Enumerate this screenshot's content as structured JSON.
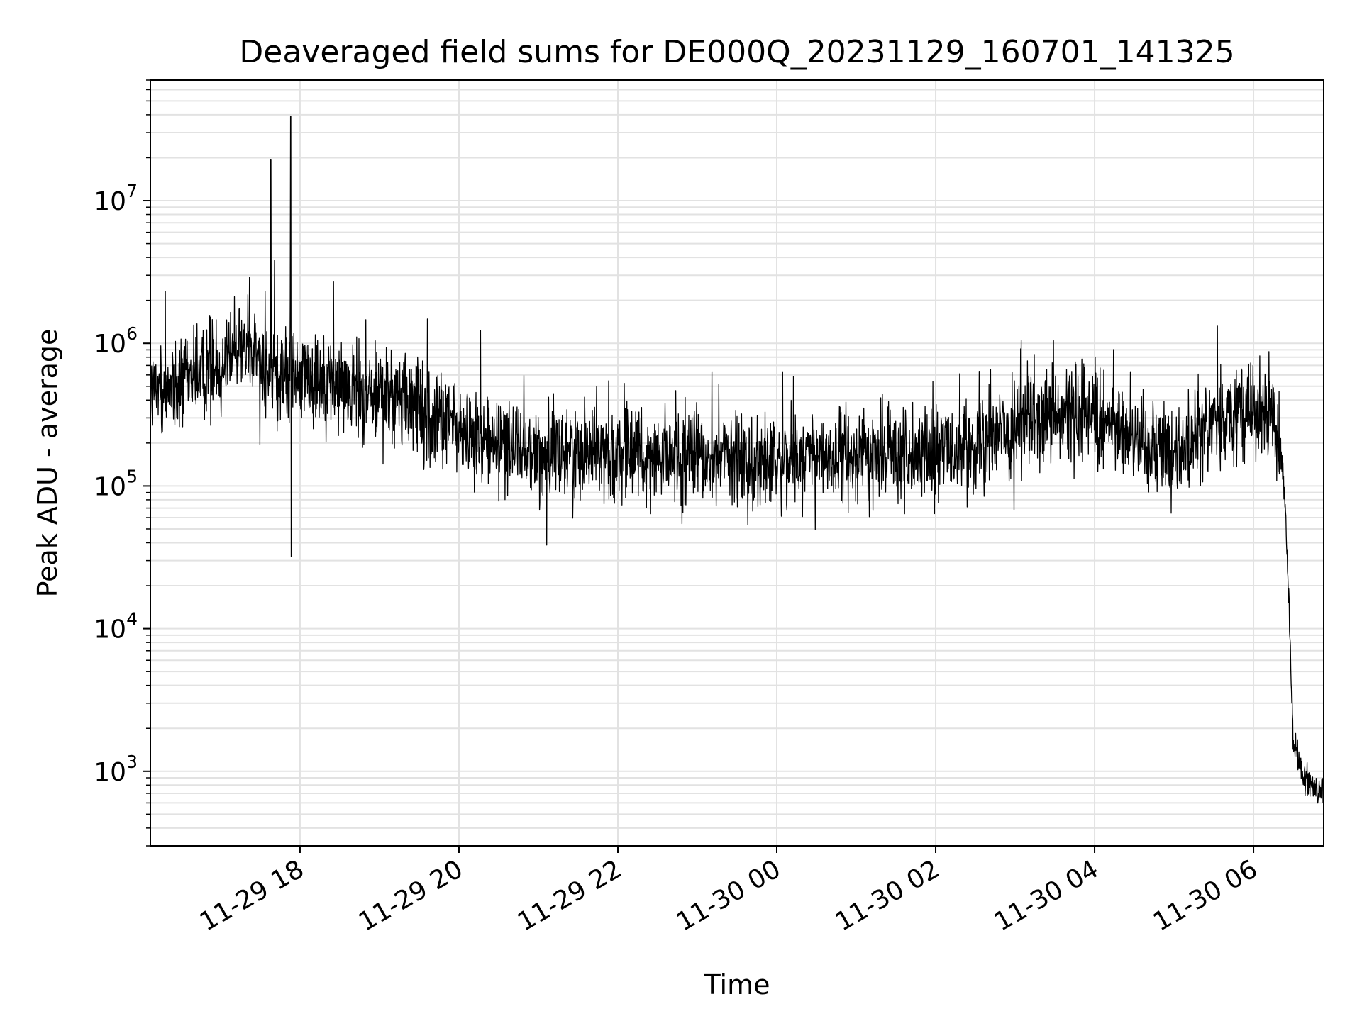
{
  "chart_data": {
    "type": "line",
    "title": "Deaveraged field sums for DE000Q_20231129_160701_141325",
    "xlabel": "Time",
    "ylabel": "Peak ADU - average",
    "yscale": "log",
    "ylim": [
      300,
      70000000
    ],
    "xlim": [
      "2023-11-29 16:07",
      "2023-11-30 06:53"
    ],
    "grid": true,
    "line_color": "#000000",
    "grid_color": "#e2e2e2",
    "x_ticks": [
      {
        "value": "2023-11-29 18:00",
        "label": "11-29 18"
      },
      {
        "value": "2023-11-29 20:00",
        "label": "11-29 20"
      },
      {
        "value": "2023-11-29 22:00",
        "label": "11-29 22"
      },
      {
        "value": "2023-11-30 00:00",
        "label": "11-30 00"
      },
      {
        "value": "2023-11-30 02:00",
        "label": "11-30 02"
      },
      {
        "value": "2023-11-30 04:00",
        "label": "11-30 04"
      },
      {
        "value": "2023-11-30 06:00",
        "label": "11-30 06"
      }
    ],
    "y_ticks": [
      {
        "value": 1000,
        "base": "10",
        "exp": "3"
      },
      {
        "value": 10000,
        "base": "10",
        "exp": "4"
      },
      {
        "value": 100000,
        "base": "10",
        "exp": "5"
      },
      {
        "value": 1000000,
        "base": "10",
        "exp": "6"
      },
      {
        "value": 10000000,
        "base": "10",
        "exp": "7"
      }
    ],
    "series": [
      {
        "x": [
          "2023-11-29 16:07",
          "2023-11-29 16:30",
          "2023-11-29 17:00",
          "2023-11-29 17:15",
          "2023-11-29 17:30",
          "2023-11-29 17:45",
          "2023-11-29 17:53",
          "2023-11-29 18:00",
          "2023-11-29 18:30",
          "2023-11-29 19:00",
          "2023-11-29 19:30",
          "2023-11-29 20:00",
          "2023-11-29 20:30",
          "2023-11-29 21:00",
          "2023-11-29 21:30",
          "2023-11-29 22:00",
          "2023-11-29 22:30",
          "2023-11-29 23:00",
          "2023-11-29 23:30",
          "2023-11-30 00:00",
          "2023-11-30 00:30",
          "2023-11-30 01:00",
          "2023-11-30 01:30",
          "2023-11-30 02:00",
          "2023-11-30 02:30",
          "2023-11-30 03:00",
          "2023-11-30 03:30",
          "2023-11-30 04:00",
          "2023-11-30 04:30",
          "2023-11-30 05:00",
          "2023-11-30 05:30",
          "2023-11-30 06:00",
          "2023-11-30 06:15",
          "2023-11-30 06:20",
          "2023-11-30 06:23",
          "2023-11-30 06:26",
          "2023-11-30 06:30",
          "2023-11-30 06:40",
          "2023-11-30 06:53"
        ],
        "y": [
          450000,
          500000,
          700000,
          1000000,
          800000,
          500000,
          600000,
          600000,
          500000,
          450000,
          350000,
          250000,
          200000,
          160000,
          180000,
          170000,
          160000,
          165000,
          150000,
          150000,
          155000,
          160000,
          170000,
          180000,
          200000,
          260000,
          300000,
          320000,
          220000,
          180000,
          280000,
          350000,
          280000,
          200000,
          100000,
          25000,
          1500,
          900,
          700
        ]
      }
    ]
  }
}
